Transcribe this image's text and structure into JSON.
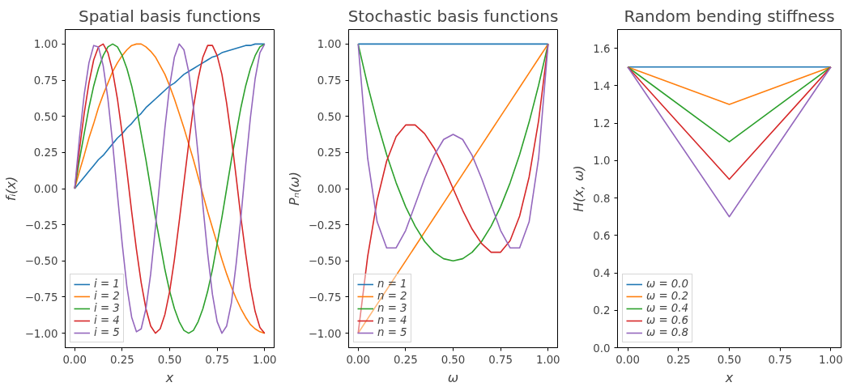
{
  "chart_data": [
    {
      "type": "line",
      "title": "Spatial basis functions",
      "xlabel": "x",
      "ylabel": "fᵢ(x)",
      "x": [
        0,
        0.025,
        0.05,
        0.075,
        0.1,
        0.125,
        0.15,
        0.175,
        0.2,
        0.225,
        0.25,
        0.275,
        0.3,
        0.325,
        0.35,
        0.375,
        0.4,
        0.425,
        0.45,
        0.475,
        0.5,
        0.525,
        0.55,
        0.575,
        0.6,
        0.625,
        0.65,
        0.675,
        0.7,
        0.725,
        0.75,
        0.775,
        0.8,
        0.825,
        0.85,
        0.875,
        0.9,
        0.925,
        0.95,
        0.975,
        1
      ],
      "series": [
        {
          "name": "i = 1",
          "color": "#1f77b4",
          "values": [
            0,
            0.04,
            0.08,
            0.12,
            0.16,
            0.2,
            0.23,
            0.27,
            0.31,
            0.35,
            0.38,
            0.42,
            0.45,
            0.49,
            0.52,
            0.56,
            0.59,
            0.62,
            0.65,
            0.68,
            0.71,
            0.73,
            0.76,
            0.79,
            0.81,
            0.83,
            0.85,
            0.87,
            0.89,
            0.91,
            0.92,
            0.94,
            0.95,
            0.96,
            0.97,
            0.98,
            0.99,
            0.99,
            1.0,
            1.0,
            1.0
          ]
        },
        {
          "name": "i = 2",
          "color": "#ff7f0e",
          "values": [
            0,
            0.12,
            0.23,
            0.35,
            0.45,
            0.56,
            0.65,
            0.73,
            0.81,
            0.87,
            0.92,
            0.96,
            0.99,
            1.0,
            1.0,
            0.98,
            0.95,
            0.91,
            0.85,
            0.79,
            0.71,
            0.62,
            0.52,
            0.42,
            0.31,
            0.2,
            0.08,
            -0.04,
            -0.16,
            -0.27,
            -0.38,
            -0.49,
            -0.59,
            -0.68,
            -0.76,
            -0.83,
            -0.89,
            -0.94,
            -0.97,
            -0.99,
            -1.0
          ]
        },
        {
          "name": "i = 3",
          "color": "#2ca02c",
          "values": [
            0,
            0.2,
            0.38,
            0.56,
            0.71,
            0.83,
            0.92,
            0.98,
            1.0,
            0.98,
            0.92,
            0.83,
            0.71,
            0.56,
            0.38,
            0.2,
            0,
            -0.2,
            -0.38,
            -0.56,
            -0.71,
            -0.83,
            -0.92,
            -0.98,
            -1.0,
            -0.98,
            -0.92,
            -0.83,
            -0.71,
            -0.56,
            -0.38,
            -0.2,
            0,
            0.2,
            0.38,
            0.56,
            0.71,
            0.83,
            0.92,
            0.98,
            1.0
          ]
        },
        {
          "name": "i = 4",
          "color": "#d62728",
          "values": [
            0,
            0.27,
            0.52,
            0.73,
            0.89,
            0.98,
            1.0,
            0.94,
            0.81,
            0.62,
            0.38,
            0.12,
            -0.16,
            -0.42,
            -0.65,
            -0.83,
            -0.95,
            -1.0,
            -0.97,
            -0.87,
            -0.71,
            -0.49,
            -0.23,
            0.04,
            0.31,
            0.56,
            0.76,
            0.91,
            0.99,
            0.99,
            0.92,
            0.79,
            0.59,
            0.35,
            0.08,
            -0.2,
            -0.45,
            -0.68,
            -0.85,
            -0.96,
            -1.0
          ]
        },
        {
          "name": "i = 5",
          "color": "#9467bd",
          "values": [
            0,
            0.35,
            0.65,
            0.87,
            0.99,
            0.98,
            0.85,
            0.62,
            0.31,
            -0.04,
            -0.38,
            -0.68,
            -0.89,
            -0.99,
            -0.97,
            -0.83,
            -0.59,
            -0.27,
            0.08,
            0.42,
            0.71,
            0.91,
            1.0,
            0.96,
            0.81,
            0.56,
            0.23,
            -0.12,
            -0.45,
            -0.73,
            -0.92,
            -1.0,
            -0.95,
            -0.79,
            -0.52,
            -0.2,
            0.16,
            0.49,
            0.76,
            0.94,
            1.0
          ]
        }
      ],
      "xlim": [
        -0.05,
        1.05
      ],
      "ylim": [
        -1.1,
        1.1
      ],
      "xticks": [
        {
          "value": 0,
          "label": "0.00"
        },
        {
          "value": 0.25,
          "label": "0.25"
        },
        {
          "value": 0.5,
          "label": "0.50"
        },
        {
          "value": 0.75,
          "label": "0.75"
        },
        {
          "value": 1,
          "label": "1.00"
        }
      ],
      "yticks": [
        {
          "value": -1,
          "label": "−1.00"
        },
        {
          "value": -0.75,
          "label": "−0.75"
        },
        {
          "value": -0.5,
          "label": "−0.50"
        },
        {
          "value": -0.25,
          "label": "−0.25"
        },
        {
          "value": 0,
          "label": "0.00"
        },
        {
          "value": 0.25,
          "label": "0.25"
        },
        {
          "value": 0.5,
          "label": "0.50"
        },
        {
          "value": 0.75,
          "label": "0.75"
        },
        {
          "value": 1,
          "label": "1.00"
        }
      ],
      "legend": "bottom left",
      "grid": false,
      "marker": "none",
      "line_style": "solid"
    },
    {
      "type": "line",
      "title": "Stochastic basis functions",
      "xlabel": "ω",
      "ylabel": "Pₙ(ω)",
      "x": [
        0,
        0.05,
        0.1,
        0.15,
        0.2,
        0.25,
        0.3,
        0.35,
        0.4,
        0.45,
        0.5,
        0.55,
        0.6,
        0.65,
        0.7,
        0.75,
        0.8,
        0.85,
        0.9,
        0.95,
        1
      ],
      "series": [
        {
          "name": "n = 1",
          "color": "#1f77b4",
          "values": [
            1,
            1,
            1,
            1,
            1,
            1,
            1,
            1,
            1,
            1,
            1,
            1,
            1,
            1,
            1,
            1,
            1,
            1,
            1,
            1,
            1
          ]
        },
        {
          "name": "n = 2",
          "color": "#ff7f0e",
          "values": [
            -1,
            -0.9,
            -0.8,
            -0.7,
            -0.6,
            -0.5,
            -0.4,
            -0.3,
            -0.2,
            -0.1,
            0,
            0.1,
            0.2,
            0.3,
            0.4,
            0.5,
            0.6,
            0.7,
            0.8,
            0.9,
            1
          ]
        },
        {
          "name": "n = 3",
          "color": "#2ca02c",
          "values": [
            1,
            0.715,
            0.46,
            0.235,
            0.04,
            -0.125,
            -0.26,
            -0.365,
            -0.44,
            -0.485,
            -0.5,
            -0.485,
            -0.44,
            -0.365,
            -0.26,
            -0.125,
            0.04,
            0.235,
            0.46,
            0.715,
            1
          ]
        },
        {
          "name": "n = 4",
          "color": "#d62728",
          "values": [
            -1,
            -0.47,
            -0.08,
            0.19,
            0.36,
            0.44,
            0.44,
            0.38,
            0.28,
            0.15,
            0,
            -0.15,
            -0.28,
            -0.38,
            -0.44,
            -0.44,
            -0.36,
            -0.19,
            0.08,
            0.47,
            1
          ]
        },
        {
          "name": "n = 5",
          "color": "#9467bd",
          "values": [
            1,
            0.21,
            -0.23,
            -0.41,
            -0.41,
            -0.29,
            -0.11,
            0.07,
            0.23,
            0.34,
            0.375,
            0.34,
            0.23,
            0.07,
            -0.11,
            -0.29,
            -0.41,
            -0.41,
            -0.23,
            0.21,
            1
          ]
        }
      ],
      "xlim": [
        -0.05,
        1.05
      ],
      "ylim": [
        -1.1,
        1.1
      ],
      "xticks": [
        {
          "value": 0,
          "label": "0.00"
        },
        {
          "value": 0.25,
          "label": "0.25"
        },
        {
          "value": 0.5,
          "label": "0.50"
        },
        {
          "value": 0.75,
          "label": "0.75"
        },
        {
          "value": 1,
          "label": "1.00"
        }
      ],
      "yticks": [
        {
          "value": -1,
          "label": "−1.00"
        },
        {
          "value": -0.75,
          "label": "−0.75"
        },
        {
          "value": -0.5,
          "label": "−0.50"
        },
        {
          "value": -0.25,
          "label": "−0.25"
        },
        {
          "value": 0,
          "label": "0.00"
        },
        {
          "value": 0.25,
          "label": "0.25"
        },
        {
          "value": 0.5,
          "label": "0.50"
        },
        {
          "value": 0.75,
          "label": "0.75"
        },
        {
          "value": 1,
          "label": "1.00"
        }
      ],
      "legend": "bottom left",
      "grid": false,
      "marker": "none",
      "line_style": "solid"
    },
    {
      "type": "line",
      "title": "Random bending stiffness",
      "xlabel": "x",
      "ylabel": "H(x, ω)",
      "x": [
        0,
        0.5,
        1
      ],
      "series": [
        {
          "name": "ω = 0.0",
          "color": "#1f77b4",
          "values": [
            1.5,
            1.5,
            1.5
          ]
        },
        {
          "name": "ω = 0.2",
          "color": "#ff7f0e",
          "values": [
            1.5,
            1.3,
            1.5
          ]
        },
        {
          "name": "ω = 0.4",
          "color": "#2ca02c",
          "values": [
            1.5,
            1.1,
            1.5
          ]
        },
        {
          "name": "ω = 0.6",
          "color": "#d62728",
          "values": [
            1.5,
            0.9,
            1.5
          ]
        },
        {
          "name": "ω = 0.8",
          "color": "#9467bd",
          "values": [
            1.5,
            0.7,
            1.5
          ]
        }
      ],
      "xlim": [
        -0.05,
        1.05
      ],
      "ylim": [
        0,
        1.7
      ],
      "xticks": [
        {
          "value": 0,
          "label": "0.00"
        },
        {
          "value": 0.25,
          "label": "0.25"
        },
        {
          "value": 0.5,
          "label": "0.50"
        },
        {
          "value": 0.75,
          "label": "0.75"
        },
        {
          "value": 1,
          "label": "1.00"
        }
      ],
      "yticks": [
        {
          "value": 0,
          "label": "0.0"
        },
        {
          "value": 0.2,
          "label": "0.2"
        },
        {
          "value": 0.4,
          "label": "0.4"
        },
        {
          "value": 0.6,
          "label": "0.6"
        },
        {
          "value": 0.8,
          "label": "0.8"
        },
        {
          "value": 1.0,
          "label": "1.0"
        },
        {
          "value": 1.2,
          "label": "1.2"
        },
        {
          "value": 1.4,
          "label": "1.4"
        },
        {
          "value": 1.6,
          "label": "1.6"
        }
      ],
      "legend": "bottom left",
      "grid": false,
      "marker": "none",
      "line_style": "solid"
    }
  ]
}
